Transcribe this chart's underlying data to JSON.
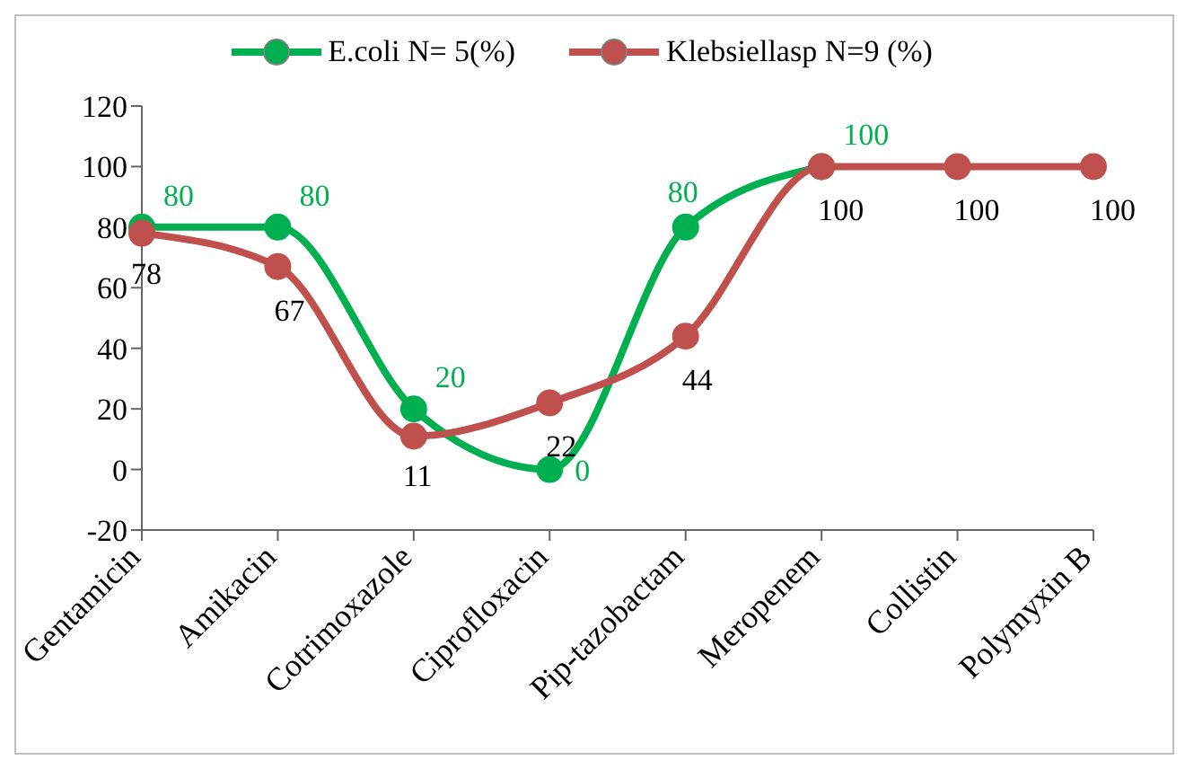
{
  "chart_data": {
    "type": "line",
    "categories": [
      "Gentamicin",
      "Amikacin",
      "Cotrimoxazole",
      "Ciprofloxacin",
      "Pip-tazobactam",
      "Meropenem",
      "Collistin",
      "Polymyxin B"
    ],
    "series": [
      {
        "name": "E.coli N= 5(%)",
        "color": "#00b050",
        "values": [
          80,
          80,
          20,
          0,
          80,
          100,
          null,
          null
        ]
      },
      {
        "name": "Klebsiellasp N=9 (%)",
        "color": "#c0504d",
        "values": [
          78,
          67,
          11,
          22,
          44,
          100,
          100,
          100
        ]
      }
    ],
    "ylim": [
      -20,
      120
    ],
    "yticks": [
      -20,
      0,
      20,
      40,
      60,
      80,
      100,
      120
    ],
    "grid": false,
    "legend": "top",
    "marker": "circle",
    "line_style": "solid",
    "data_labels": true
  }
}
